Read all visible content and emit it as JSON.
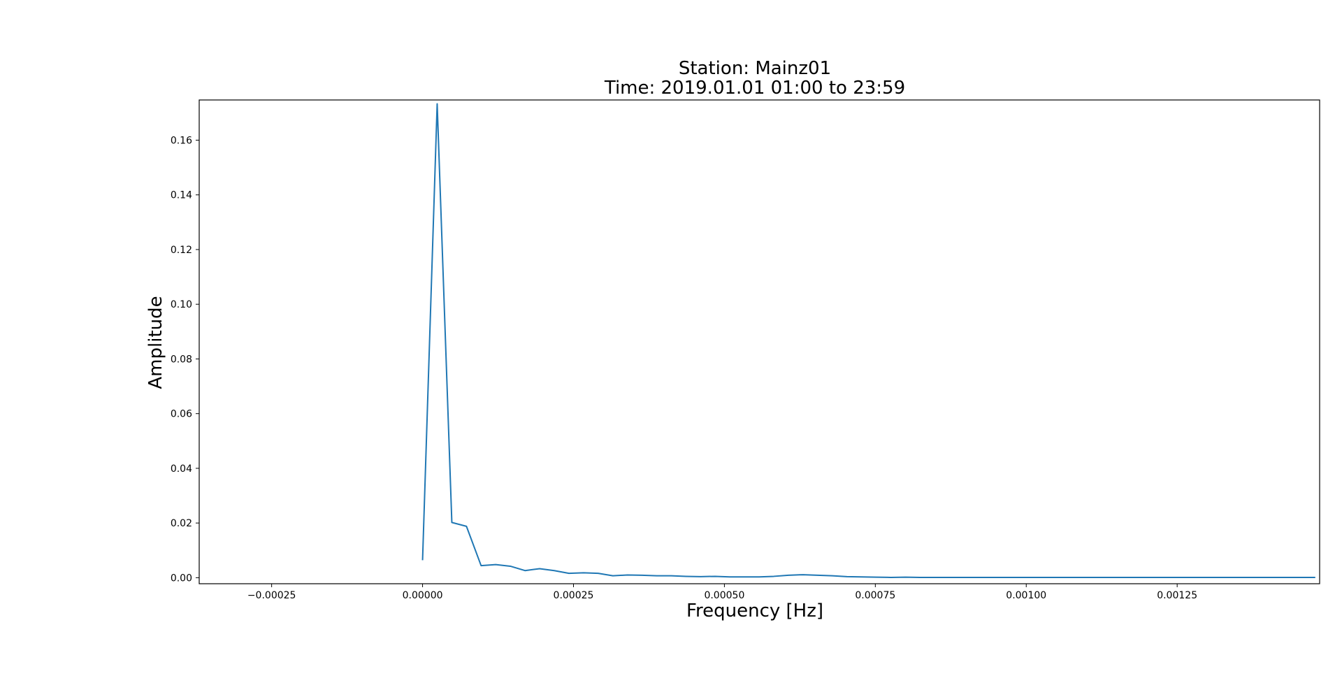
{
  "chart_data": {
    "type": "line",
    "title": "Station: Mainz01",
    "subtitle": "Time: 2019.01.01 01:00 to 23:59",
    "xlabel": "Frequency [Hz]",
    "ylabel": "Amplitude",
    "xlim": [
      -0.00037,
      0.001486
    ],
    "ylim": [
      -0.0022,
      0.1747
    ],
    "grid": false,
    "x_ticks": [
      {
        "value": -0.00025,
        "label": "−0.00025"
      },
      {
        "value": 0.0,
        "label": "0.00000"
      },
      {
        "value": 0.00025,
        "label": "0.00025"
      },
      {
        "value": 0.0005,
        "label": "0.00050"
      },
      {
        "value": 0.00075,
        "label": "0.00075"
      },
      {
        "value": 0.001,
        "label": "0.00100"
      },
      {
        "value": 0.00125,
        "label": "0.00125"
      }
    ],
    "y_ticks": [
      {
        "value": 0.0,
        "label": "0.00"
      },
      {
        "value": 0.02,
        "label": "0.02"
      },
      {
        "value": 0.04,
        "label": "0.04"
      },
      {
        "value": 0.06,
        "label": "0.06"
      },
      {
        "value": 0.08,
        "label": "0.08"
      },
      {
        "value": 0.1,
        "label": "0.10"
      },
      {
        "value": 0.12,
        "label": "0.12"
      },
      {
        "value": 0.14,
        "label": "0.14"
      },
      {
        "value": 0.16,
        "label": "0.16"
      }
    ],
    "series": [
      {
        "color": "#1f77b4",
        "x": [
          0.0,
          2.42e-05,
          4.85e-05,
          7.27e-05,
          9.7e-05,
          0.0001212,
          0.0001455,
          0.0001697,
          0.0001939,
          0.0002182,
          0.0002424,
          0.0002667,
          0.0002909,
          0.0003152,
          0.0003394,
          0.0003636,
          0.0003879,
          0.0004121,
          0.0004364,
          0.0004606,
          0.0004848,
          0.0005091,
          0.0005333,
          0.0005576,
          0.0005818,
          0.0006061,
          0.0006303,
          0.0006545,
          0.0006788,
          0.000703,
          0.0007273,
          0.0007515,
          0.0007758,
          0.0008,
          0.0008242,
          0.0008485,
          0.0008727,
          0.000897,
          0.0009212,
          0.0009455,
          0.0009697,
          0.0009939,
          0.0010182,
          0.0010424,
          0.0010667,
          0.0010909,
          0.0011152,
          0.0011394,
          0.0011636,
          0.0011879,
          0.0012121,
          0.0012364,
          0.0012606,
          0.0012848,
          0.0013091,
          0.0013333,
          0.0013576,
          0.0013818,
          0.0014061,
          0.0014303,
          0.0014545,
          0.0014788
        ],
        "y": [
          0.0064,
          0.1733,
          0.0202,
          0.0188,
          0.0044,
          0.0048,
          0.0042,
          0.0026,
          0.0033,
          0.0026,
          0.0016,
          0.0018,
          0.0016,
          0.0007,
          0.001,
          0.0009,
          0.0007,
          0.0007,
          0.0005,
          0.0004,
          0.0005,
          0.0003,
          0.0003,
          0.0003,
          0.0005,
          0.0009,
          0.0011,
          0.0009,
          0.0007,
          0.0004,
          0.0003,
          0.0002,
          0.0001,
          0.0002,
          0.0001,
          0.0001,
          0.0001,
          0.0001,
          0.0001,
          0.0001,
          0.0001,
          0.0001,
          0.0001,
          0.0001,
          0.0001,
          0.0001,
          0.0001,
          0.0001,
          0.0001,
          0.0001,
          0.0001,
          0.0001,
          0.0001,
          0.0001,
          0.0001,
          0.0001,
          0.0001,
          0.0001,
          0.0001,
          0.0001,
          0.0001,
          0.0001
        ]
      }
    ]
  }
}
